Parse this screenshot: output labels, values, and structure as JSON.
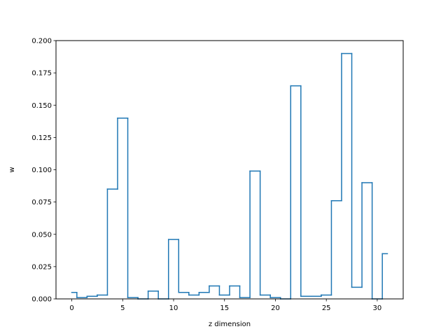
{
  "chart_data": {
    "type": "line",
    "drawstyle": "steps-mid",
    "title": "",
    "xlabel": "z dimension",
    "ylabel": "w",
    "xlim": [
      -1.55,
      32.55
    ],
    "ylim": [
      0,
      0.2
    ],
    "xticks": [
      0,
      5,
      10,
      15,
      20,
      25,
      30
    ],
    "xtick_labels": [
      "0",
      "5",
      "10",
      "15",
      "20",
      "25",
      "30"
    ],
    "yticks": [
      0,
      0.025,
      0.05,
      0.075,
      0.1,
      0.125,
      0.15,
      0.175,
      0.2
    ],
    "ytick_labels": [
      "0.000",
      "0.025",
      "0.050",
      "0.075",
      "0.100",
      "0.125",
      "0.150",
      "0.175",
      "0.200"
    ],
    "grid": false,
    "line_color": "#1f77b4",
    "x": [
      0,
      1,
      2,
      3,
      4,
      5,
      6,
      7,
      8,
      9,
      10,
      11,
      12,
      13,
      14,
      15,
      16,
      17,
      18,
      19,
      20,
      21,
      22,
      23,
      24,
      25,
      26,
      27,
      28,
      29,
      30,
      31
    ],
    "values": [
      0.005,
      0.001,
      0.002,
      0.003,
      0.085,
      0.14,
      0.001,
      0.0,
      0.006,
      0.0,
      0.046,
      0.005,
      0.003,
      0.005,
      0.01,
      0.003,
      0.01,
      0.001,
      0.099,
      0.003,
      0.001,
      0.0,
      0.165,
      0.002,
      0.002,
      0.003,
      0.076,
      0.19,
      0.009,
      0.09,
      0.0,
      0.035
    ]
  }
}
